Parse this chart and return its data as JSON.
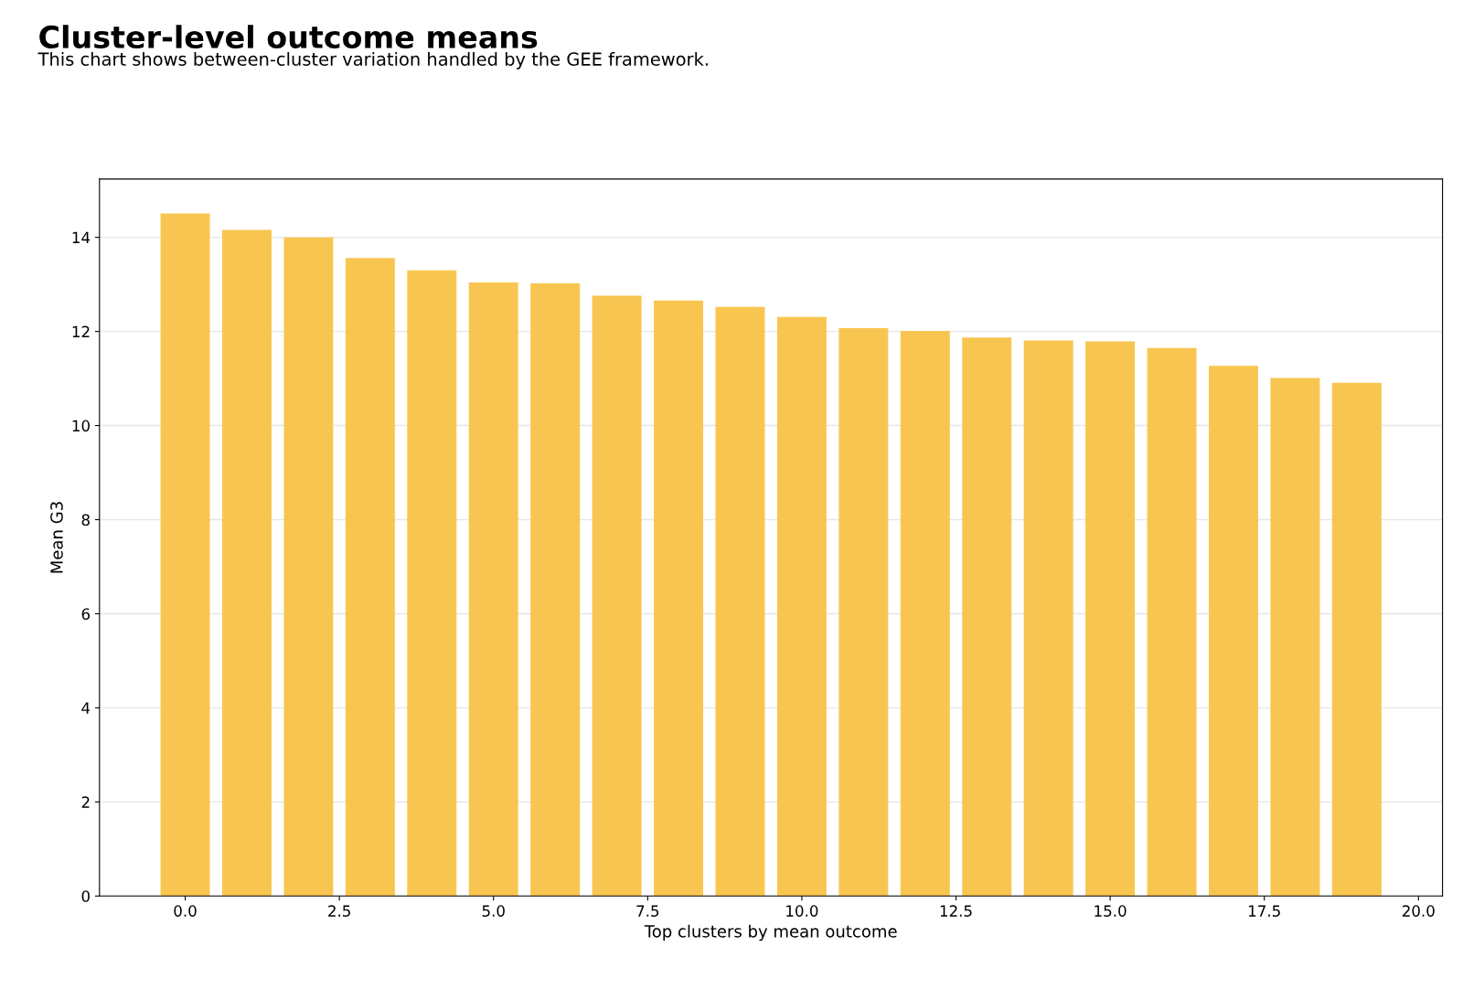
{
  "chart_data": {
    "type": "bar",
    "title": "Cluster-level outcome means",
    "subtitle": "This chart shows between-cluster variation handled by the GEE framework.",
    "xlabel": "Top clusters by mean outcome",
    "ylabel": "Mean G3",
    "x": [
      0,
      1,
      2,
      3,
      4,
      5,
      6,
      7,
      8,
      9,
      10,
      11,
      12,
      13,
      14,
      15,
      16,
      17,
      18,
      19
    ],
    "values": [
      14.51,
      14.16,
      14.0,
      13.56,
      13.3,
      13.04,
      13.02,
      12.76,
      12.66,
      12.52,
      12.31,
      12.07,
      12.01,
      11.87,
      11.81,
      11.79,
      11.65,
      11.27,
      11.01,
      10.91
    ],
    "color": "#f8c650",
    "xlim": [
      -1.39,
      20.39
    ],
    "xticks": [
      {
        "value": 0,
        "label": "0.0"
      },
      {
        "value": 2.5,
        "label": "2.5"
      },
      {
        "value": 5,
        "label": "5.0"
      },
      {
        "value": 7.5,
        "label": "7.5"
      },
      {
        "value": 10,
        "label": "10.0"
      },
      {
        "value": 12.5,
        "label": "12.5"
      },
      {
        "value": 15,
        "label": "15.0"
      },
      {
        "value": 17.5,
        "label": "17.5"
      },
      {
        "value": 20,
        "label": "20.0"
      }
    ],
    "ylim": [
      0,
      15.24
    ],
    "yticks": [
      0,
      2,
      4,
      6,
      8,
      10,
      12,
      14
    ],
    "grid": "y"
  }
}
